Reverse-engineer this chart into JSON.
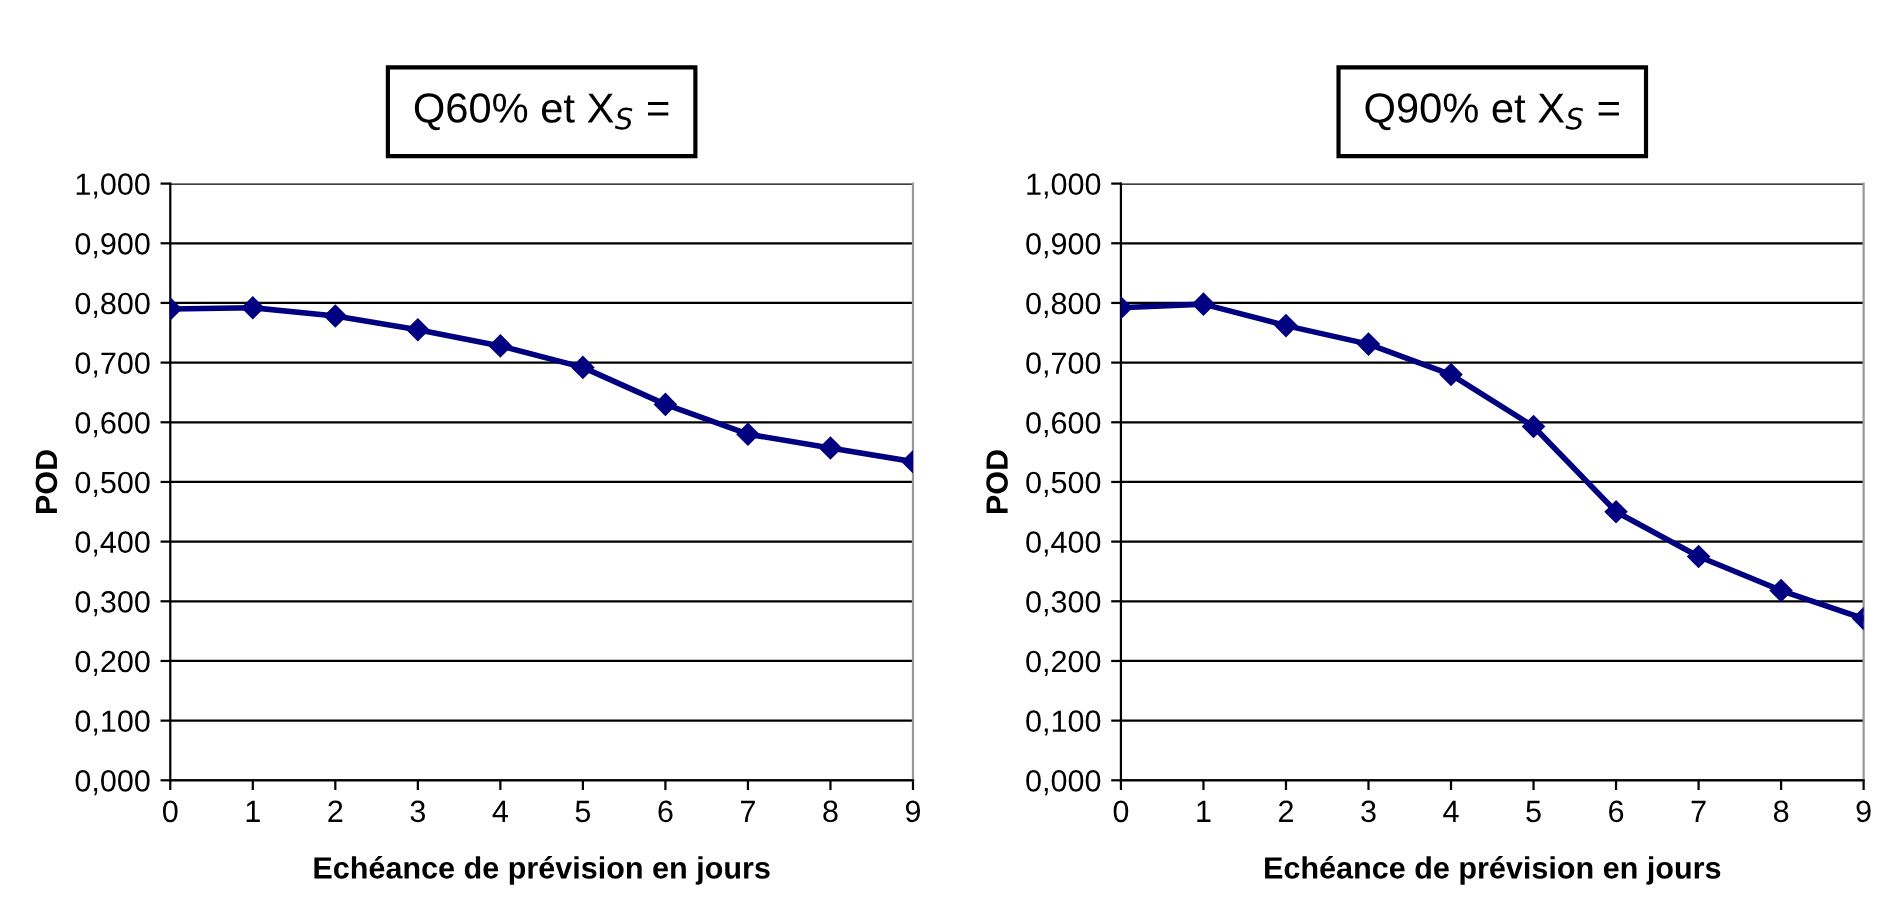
{
  "chart_data": [
    {
      "type": "line",
      "title": "Q60% et X$_{S}$ =",
      "xlabel": "Echéance de prévision en jours",
      "ylabel": "POD",
      "x": [
        0,
        1,
        2,
        3,
        4,
        5,
        6,
        7,
        8,
        9
      ],
      "series": [
        {
          "color": "#000080",
          "values": [
            0.79,
            0.792,
            0.778,
            0.755,
            0.728,
            0.692,
            0.63,
            0.58,
            0.557,
            0.534
          ]
        }
      ],
      "xlim": [
        0,
        9
      ],
      "xticks": [
        0,
        1,
        2,
        3,
        4,
        5,
        6,
        7,
        8,
        9
      ],
      "ylim": [
        0,
        1
      ],
      "yticks": [
        {
          "value": 0,
          "label": "0,000"
        },
        {
          "value": 0.1,
          "label": "0,100"
        },
        {
          "value": 0.2,
          "label": "0,200"
        },
        {
          "value": 0.3,
          "label": "0,300"
        },
        {
          "value": 0.4,
          "label": "0,400"
        },
        {
          "value": 0.5,
          "label": "0,500"
        },
        {
          "value": 0.6,
          "label": "0,600"
        },
        {
          "value": 0.7,
          "label": "0,700"
        },
        {
          "value": 0.8,
          "label": "0,800"
        },
        {
          "value": 0.9,
          "label": "0,900"
        },
        {
          "value": 1,
          "label": "1,000"
        }
      ],
      "grid": "y",
      "marker": "diamond",
      "line_style": "solid"
    },
    {
      "type": "line",
      "title": "Q90% et X$_{S}$ =",
      "xlabel": "Echéance de prévision en jours",
      "ylabel": "POD",
      "x": [
        0,
        1,
        2,
        3,
        4,
        5,
        6,
        7,
        8,
        9
      ],
      "series": [
        {
          "color": "#000080",
          "values": [
            0.792,
            0.798,
            0.762,
            0.731,
            0.68,
            0.593,
            0.45,
            0.375,
            0.318,
            0.271
          ]
        }
      ],
      "xlim": [
        0,
        9
      ],
      "xticks": [
        0,
        1,
        2,
        3,
        4,
        5,
        6,
        7,
        8,
        9
      ],
      "ylim": [
        0,
        1
      ],
      "yticks": [
        {
          "value": 0,
          "label": "0,000"
        },
        {
          "value": 0.1,
          "label": "0,100"
        },
        {
          "value": 0.2,
          "label": "0,200"
        },
        {
          "value": 0.3,
          "label": "0,300"
        },
        {
          "value": 0.4,
          "label": "0,400"
        },
        {
          "value": 0.5,
          "label": "0,500"
        },
        {
          "value": 0.6,
          "label": "0,600"
        },
        {
          "value": 0.7,
          "label": "0,700"
        },
        {
          "value": 0.8,
          "label": "0,800"
        },
        {
          "value": 0.9,
          "label": "0,900"
        },
        {
          "value": 1,
          "label": "1,000"
        }
      ],
      "grid": "y",
      "marker": "diamond",
      "line_style": "solid"
    }
  ]
}
